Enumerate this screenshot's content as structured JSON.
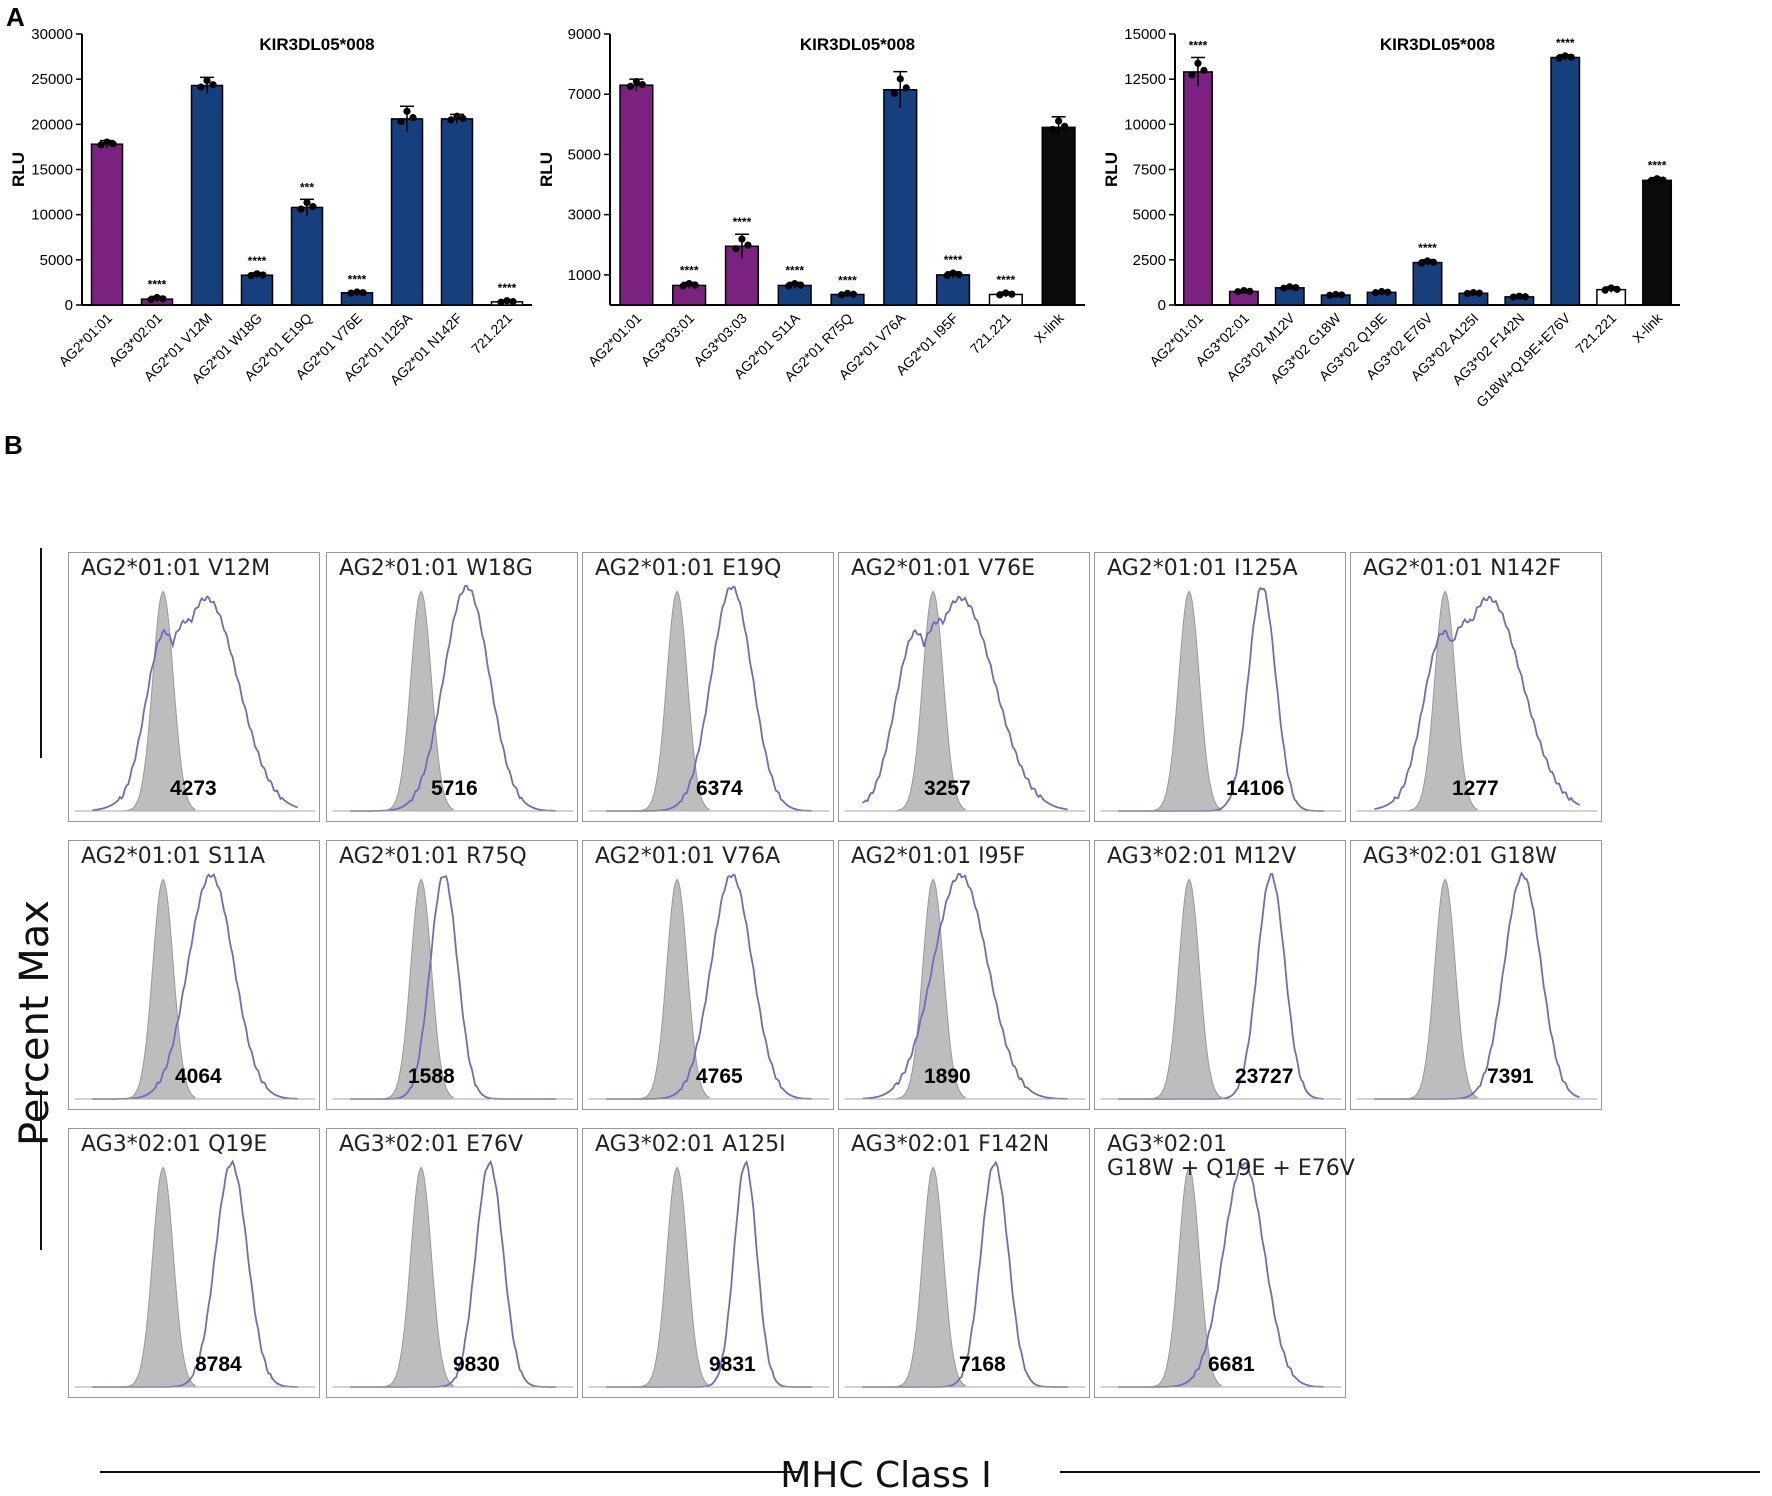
{
  "panel_a_label": "A",
  "panel_b_label": "B",
  "colors": {
    "purple": "#7b2280",
    "blue": "#163f7e",
    "black": "#0b0b0b",
    "white": "#ffffff",
    "hist_line": "#6f6cbf",
    "hist_fill": "#bdbdbd"
  },
  "chart_data": [
    {
      "type": "bar",
      "title": "KIR3DL05*008",
      "ylabel": "RLU",
      "ylim": [
        0,
        30000
      ],
      "yticks": [
        0,
        5000,
        10000,
        15000,
        20000,
        25000,
        30000
      ],
      "categories": [
        "AG2*01:01",
        "AG3*02:01",
        "AG2*01 V12M",
        "AG2*01 W18G",
        "AG2*01 E19Q",
        "AG2*01 V76E",
        "AG2*01 I125A",
        "AG2*01 N142F",
        "721.221"
      ],
      "values": [
        17800,
        650,
        24300,
        3300,
        10800,
        1350,
        20600,
        20600,
        350
      ],
      "errors": [
        400,
        300,
        900,
        250,
        900,
        150,
        1400,
        500,
        200
      ],
      "colors": [
        "purple",
        "purple",
        "blue",
        "blue",
        "blue",
        "blue",
        "blue",
        "blue",
        "white"
      ],
      "significance": [
        "",
        "****",
        "",
        "****",
        "***",
        "****",
        "",
        "",
        "****"
      ]
    },
    {
      "type": "bar",
      "title": "KIR3DL05*008",
      "ylabel": "RLU",
      "ylim": [
        0,
        9000
      ],
      "yticks": [
        1000,
        3000,
        5000,
        7000,
        9000
      ],
      "categories": [
        "AG2*01:01",
        "AG3*03:01",
        "AG3*03:03",
        "AG2*01 S11A",
        "AG2*01 R75Q",
        "AG2*01 V76A",
        "AG2*01 I95F",
        "721.221",
        "X-link"
      ],
      "values": [
        7300,
        650,
        1950,
        650,
        350,
        7150,
        1000,
        350,
        5900
      ],
      "errors": [
        200,
        100,
        400,
        100,
        60,
        600,
        100,
        80,
        350
      ],
      "colors": [
        "purple",
        "purple",
        "purple",
        "blue",
        "blue",
        "blue",
        "blue",
        "white",
        "black"
      ],
      "significance": [
        "",
        "****",
        "****",
        "****",
        "****",
        "",
        "****",
        "****",
        ""
      ]
    },
    {
      "type": "bar",
      "title": "KIR3DL05*008",
      "ylabel": "RLU",
      "ylim": [
        0,
        15000
      ],
      "yticks": [
        0,
        2500,
        5000,
        7500,
        10000,
        12500,
        15000
      ],
      "categories": [
        "AG2*01:01",
        "AG3*02:01",
        "AG3*02 M12V",
        "AG3*02 G18W",
        "AG3*02 Q19E",
        "AG3*02 E76V",
        "AG3*02 A125I",
        "AG3*02 F142N",
        "G18W+Q19E+E76V",
        "721.221",
        "X-link"
      ],
      "values": [
        12900,
        750,
        950,
        550,
        700,
        2350,
        650,
        450,
        13700,
        850,
        6900
      ],
      "errors": [
        800,
        80,
        100,
        60,
        80,
        150,
        60,
        60,
        150,
        150,
        150
      ],
      "colors": [
        "purple",
        "purple",
        "blue",
        "blue",
        "blue",
        "blue",
        "blue",
        "blue",
        "blue",
        "white",
        "black"
      ],
      "significance": [
        "****",
        "",
        "",
        "",
        "",
        "****",
        "",
        "",
        "****",
        "",
        "****"
      ]
    }
  ],
  "histograms": {
    "ylabel": "Percent Max",
    "xlabel": "MHC Class I",
    "panels": [
      {
        "title": "AG2*01:01 V12M",
        "mfi": "4273",
        "peak": 0.55,
        "width": 0.14,
        "bimodal": true
      },
      {
        "title": "AG2*01:01 W18G",
        "mfi": "5716",
        "peak": 0.56,
        "width": 0.1,
        "bimodal": false
      },
      {
        "title": "AG2*01:01 E19Q",
        "mfi": "6374",
        "peak": 0.6,
        "width": 0.09,
        "bimodal": false
      },
      {
        "title": "AG2*01:01 V76E",
        "mfi": "3257",
        "peak": 0.48,
        "width": 0.15,
        "bimodal": true
      },
      {
        "title": "AG2*01:01 I125A",
        "mfi": "14106",
        "peak": 0.68,
        "width": 0.06,
        "bimodal": false
      },
      {
        "title": "AG2*01:01 N142F",
        "mfi": "1277",
        "peak": 0.55,
        "width": 0.15,
        "bimodal": true
      },
      {
        "title": "AG2*01:01 S11A",
        "mfi": "4064",
        "peak": 0.57,
        "width": 0.1,
        "bimodal": false
      },
      {
        "title": "AG2*01:01 R75Q",
        "mfi": "1588",
        "peak": 0.46,
        "width": 0.06,
        "bimodal": false
      },
      {
        "title": "AG2*01:01 V76A",
        "mfi": "4765",
        "peak": 0.6,
        "width": 0.09,
        "bimodal": false
      },
      {
        "title": "AG2*01:01 I95F",
        "mfi": "1890",
        "peak": 0.48,
        "width": 0.12,
        "bimodal": false
      },
      {
        "title": "AG3*02:01 M12V",
        "mfi": "23727",
        "peak": 0.72,
        "width": 0.06,
        "bimodal": false
      },
      {
        "title": "AG3*02:01 G18W",
        "mfi": "7391",
        "peak": 0.7,
        "width": 0.08,
        "bimodal": false
      },
      {
        "title": "AG3*02:01 Q19E",
        "mfi": "8784",
        "peak": 0.66,
        "width": 0.07,
        "bimodal": false
      },
      {
        "title": "AG3*02:01 E76V",
        "mfi": "9830",
        "peak": 0.66,
        "width": 0.06,
        "bimodal": false
      },
      {
        "title": "AG3*02:01 A125I",
        "mfi": "9831",
        "peak": 0.66,
        "width": 0.05,
        "bimodal": false
      },
      {
        "title": "AG3*02:01 F142N",
        "mfi": "7168",
        "peak": 0.63,
        "width": 0.06,
        "bimodal": false
      },
      {
        "title": "AG3*02:01",
        "title2": "G18W + Q19E + E76V",
        "mfi": "6681",
        "peak": 0.6,
        "width": 0.09,
        "bimodal": false
      }
    ]
  }
}
